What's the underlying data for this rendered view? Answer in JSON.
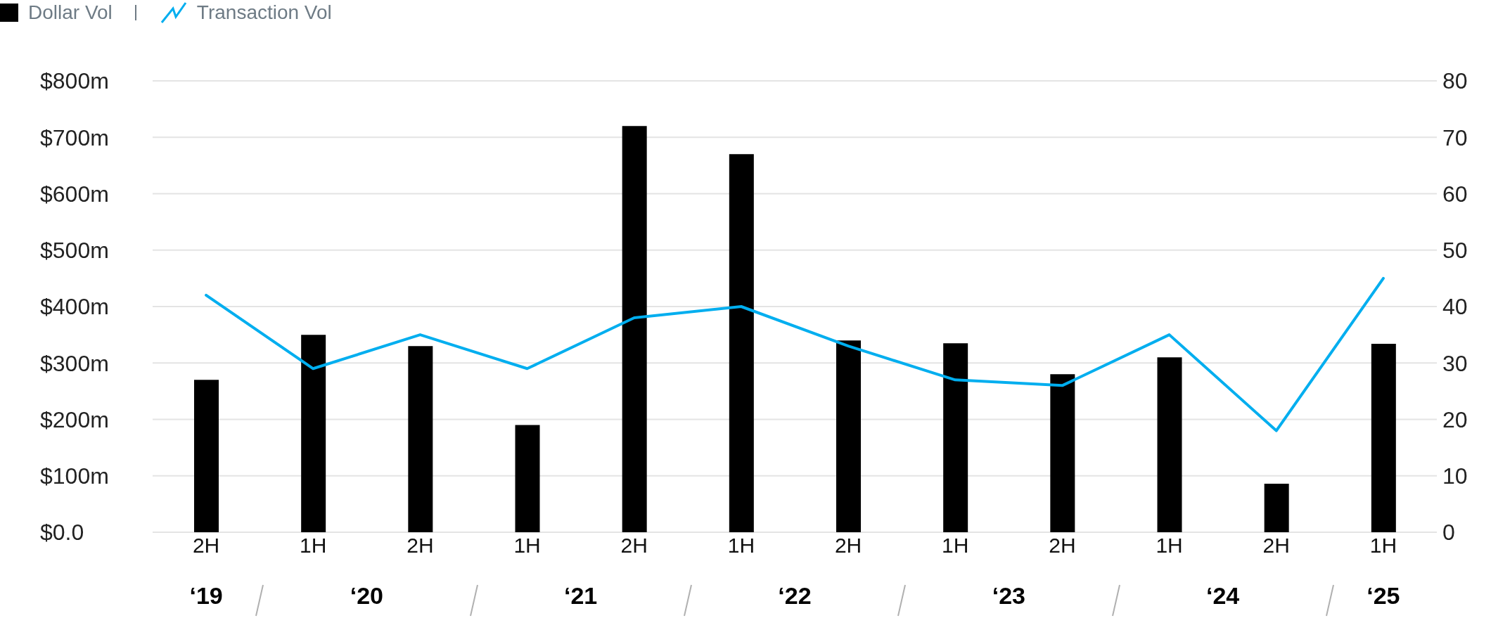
{
  "chart_data": {
    "type": "bar",
    "categories": [
      "2H",
      "1H",
      "2H",
      "1H",
      "2H",
      "1H",
      "2H",
      "1H",
      "2H",
      "1H",
      "2H",
      "1H"
    ],
    "series": [
      {
        "name": "Dollar Vol",
        "color": "#000000",
        "values": [
          270,
          350,
          330,
          190,
          720,
          670,
          340,
          335,
          280,
          310,
          86,
          334
        ]
      },
      {
        "name": "Transaction Vol",
        "type": "line",
        "axis": "y2",
        "color": "#00aeef",
        "values": [
          42,
          29,
          35,
          29,
          38,
          40,
          33,
          27,
          26,
          35,
          18,
          45
        ]
      }
    ],
    "ylim": [
      0,
      800
    ],
    "yticks": [
      {
        "value": 0,
        "label": "$0.0"
      },
      {
        "value": 100,
        "label": "$100m"
      },
      {
        "value": 200,
        "label": "$200m"
      },
      {
        "value": 300,
        "label": "$300m"
      },
      {
        "value": 400,
        "label": "$400m"
      },
      {
        "value": 500,
        "label": "$500m"
      },
      {
        "value": 600,
        "label": "$600m"
      },
      {
        "value": 700,
        "label": "$700m"
      },
      {
        "value": 800,
        "label": "$800m"
      }
    ],
    "y2lim": [
      0,
      80
    ],
    "y2ticks": [
      0,
      10,
      20,
      30,
      40,
      50,
      60,
      70,
      80
    ],
    "annotations": [
      "‘19",
      "‘20",
      "‘21",
      "‘22",
      "‘23",
      "‘24",
      "‘25"
    ],
    "grid": "y",
    "legend": "top left",
    "marker": "none",
    "line_style": "solid"
  }
}
